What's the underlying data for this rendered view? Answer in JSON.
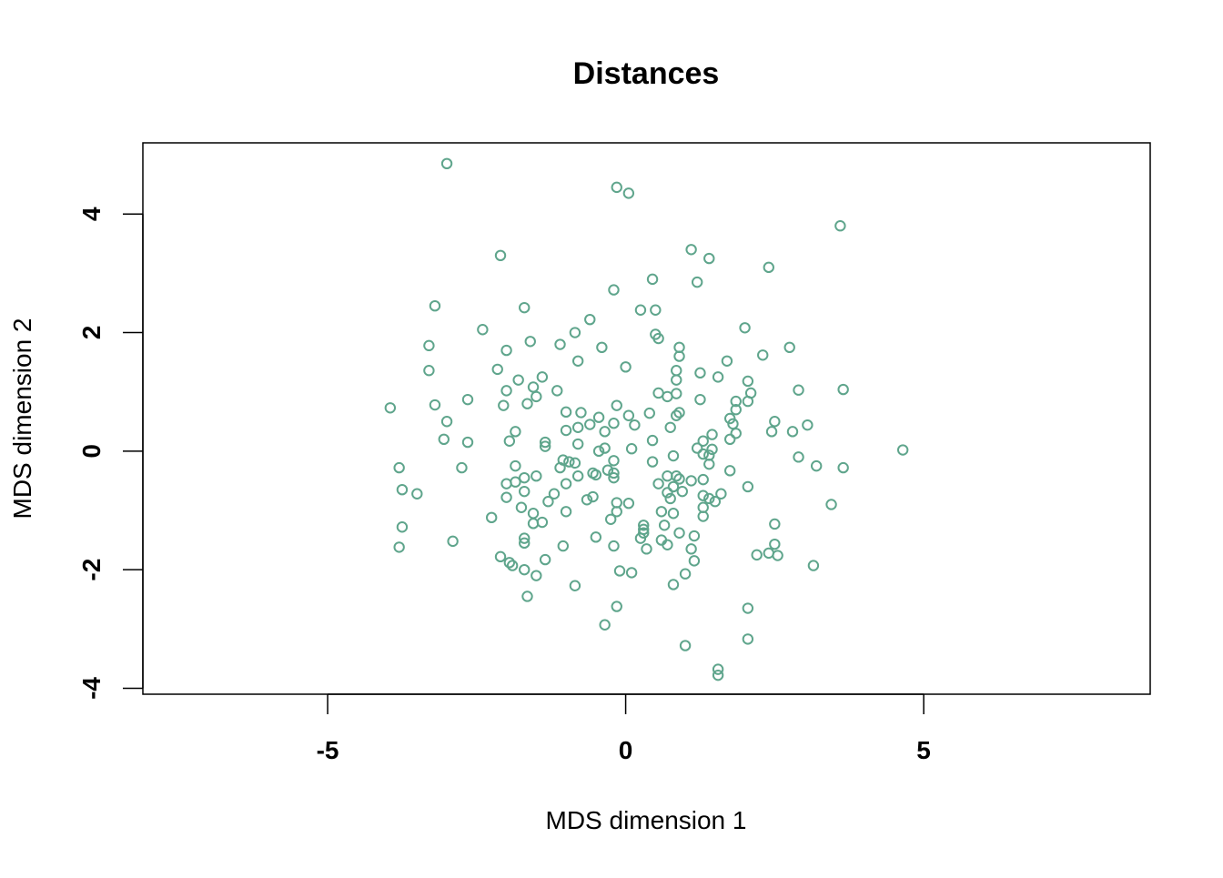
{
  "chart_data": {
    "type": "scatter",
    "title": "Distances",
    "xlabel": "MDS dimension 1",
    "ylabel": "MDS dimension 2",
    "xlim": [
      -8.1,
      8.8
    ],
    "ylim": [
      -4.1,
      5.2
    ],
    "xticks": [
      -5,
      0,
      5
    ],
    "yticks": [
      -4,
      -2,
      0,
      2,
      4
    ],
    "grid": false,
    "point_color": "#5fa58c",
    "points": [
      [
        -3.0,
        4.85
      ],
      [
        -0.15,
        4.45
      ],
      [
        0.05,
        4.35
      ],
      [
        3.6,
        3.8
      ],
      [
        -2.1,
        3.3
      ],
      [
        1.1,
        3.4
      ],
      [
        1.4,
        3.25
      ],
      [
        2.4,
        3.1
      ],
      [
        0.45,
        2.9
      ],
      [
        1.2,
        2.85
      ],
      [
        -0.2,
        2.72
      ],
      [
        -3.2,
        2.45
      ],
      [
        -1.7,
        2.42
      ],
      [
        0.25,
        2.38
      ],
      [
        0.5,
        2.38
      ],
      [
        -0.6,
        2.22
      ],
      [
        -2.4,
        2.05
      ],
      [
        -0.85,
        2.0
      ],
      [
        0.5,
        1.97
      ],
      [
        2.0,
        2.08
      ],
      [
        -1.6,
        1.85
      ],
      [
        -1.1,
        1.8
      ],
      [
        0.55,
        1.9
      ],
      [
        -3.3,
        1.78
      ],
      [
        -2.0,
        1.7
      ],
      [
        -0.4,
        1.75
      ],
      [
        0.9,
        1.75
      ],
      [
        2.75,
        1.75
      ],
      [
        2.3,
        1.62
      ],
      [
        0.9,
        1.6
      ],
      [
        1.7,
        1.52
      ],
      [
        -0.8,
        1.52
      ],
      [
        -2.15,
        1.38
      ],
      [
        -3.3,
        1.36
      ],
      [
        0.0,
        1.42
      ],
      [
        0.85,
        1.36
      ],
      [
        1.25,
        1.32
      ],
      [
        -1.8,
        1.2
      ],
      [
        -1.4,
        1.25
      ],
      [
        0.85,
        1.2
      ],
      [
        1.55,
        1.25
      ],
      [
        2.05,
        1.18
      ],
      [
        -1.55,
        1.08
      ],
      [
        -2.0,
        1.02
      ],
      [
        -1.15,
        1.02
      ],
      [
        0.55,
        0.98
      ],
      [
        2.1,
        0.98
      ],
      [
        3.65,
        1.04
      ],
      [
        -1.5,
        0.92
      ],
      [
        2.9,
        1.03
      ],
      [
        -2.65,
        0.87
      ],
      [
        0.7,
        0.92
      ],
      [
        0.85,
        0.97
      ],
      [
        1.25,
        0.87
      ],
      [
        1.85,
        0.84
      ],
      [
        2.05,
        0.84
      ],
      [
        -3.2,
        0.78
      ],
      [
        -2.05,
        0.77
      ],
      [
        -1.65,
        0.8
      ],
      [
        -0.15,
        0.77
      ],
      [
        -3.95,
        0.73
      ],
      [
        -1.0,
        0.66
      ],
      [
        -0.75,
        0.65
      ],
      [
        0.9,
        0.65
      ],
      [
        0.4,
        0.64
      ],
      [
        0.85,
        0.6
      ],
      [
        1.85,
        0.7
      ],
      [
        1.75,
        0.55
      ],
      [
        0.05,
        0.6
      ],
      [
        -0.45,
        0.57
      ],
      [
        -3.0,
        0.5
      ],
      [
        -0.6,
        0.45
      ],
      [
        -0.2,
        0.47
      ],
      [
        0.15,
        0.44
      ],
      [
        1.8,
        0.46
      ],
      [
        2.5,
        0.5
      ],
      [
        3.05,
        0.44
      ],
      [
        -1.85,
        0.33
      ],
      [
        -1.0,
        0.35
      ],
      [
        -0.8,
        0.4
      ],
      [
        0.75,
        0.4
      ],
      [
        -0.35,
        0.33
      ],
      [
        2.45,
        0.33
      ],
      [
        1.45,
        0.28
      ],
      [
        1.85,
        0.3
      ],
      [
        2.8,
        0.33
      ],
      [
        -3.05,
        0.2
      ],
      [
        -1.95,
        0.17
      ],
      [
        -1.35,
        0.15
      ],
      [
        0.45,
        0.18
      ],
      [
        1.3,
        0.17
      ],
      [
        1.75,
        0.2
      ],
      [
        -2.65,
        0.15
      ],
      [
        -1.35,
        0.08
      ],
      [
        1.2,
        0.05
      ],
      [
        1.45,
        0.03
      ],
      [
        4.65,
        0.02
      ],
      [
        -0.45,
        0.0
      ],
      [
        -0.8,
        0.12
      ],
      [
        -0.35,
        0.05
      ],
      [
        0.1,
        0.04
      ],
      [
        1.3,
        -0.05
      ],
      [
        1.4,
        -0.07
      ],
      [
        0.8,
        -0.08
      ],
      [
        2.9,
        -0.1
      ],
      [
        -1.05,
        -0.15
      ],
      [
        -0.95,
        -0.18
      ],
      [
        -0.2,
        -0.16
      ],
      [
        0.45,
        -0.18
      ],
      [
        -0.85,
        -0.2
      ],
      [
        1.4,
        -0.22
      ],
      [
        3.2,
        -0.25
      ],
      [
        -1.85,
        -0.25
      ],
      [
        -1.1,
        -0.28
      ],
      [
        -0.3,
        -0.32
      ],
      [
        3.65,
        -0.28
      ],
      [
        -3.8,
        -0.28
      ],
      [
        -2.75,
        -0.28
      ],
      [
        -0.55,
        -0.37
      ],
      [
        -0.5,
        -0.4
      ],
      [
        -0.2,
        -0.37
      ],
      [
        -1.5,
        -0.42
      ],
      [
        -1.7,
        -0.45
      ],
      [
        -0.8,
        -0.42
      ],
      [
        0.7,
        -0.42
      ],
      [
        0.85,
        -0.42
      ],
      [
        0.9,
        -0.47
      ],
      [
        1.1,
        -0.5
      ],
      [
        1.3,
        -0.48
      ],
      [
        1.75,
        -0.33
      ],
      [
        -0.2,
        -0.45
      ],
      [
        -1.85,
        -0.52
      ],
      [
        -2.0,
        -0.55
      ],
      [
        -1.0,
        -0.55
      ],
      [
        0.55,
        -0.55
      ],
      [
        0.8,
        -0.6
      ],
      [
        2.05,
        -0.6
      ],
      [
        -3.75,
        -0.65
      ],
      [
        -1.7,
        -0.68
      ],
      [
        -1.2,
        -0.72
      ],
      [
        0.95,
        -0.68
      ],
      [
        0.7,
        -0.7
      ],
      [
        1.3,
        -0.75
      ],
      [
        1.6,
        -0.72
      ],
      [
        -3.5,
        -0.72
      ],
      [
        -0.55,
        -0.77
      ],
      [
        1.4,
        -0.8
      ],
      [
        1.5,
        -0.85
      ],
      [
        0.75,
        -0.8
      ],
      [
        -2.0,
        -0.78
      ],
      [
        -1.3,
        -0.85
      ],
      [
        -0.65,
        -0.82
      ],
      [
        -0.15,
        -0.87
      ],
      [
        0.05,
        -0.88
      ],
      [
        3.45,
        -0.9
      ],
      [
        -1.75,
        -0.95
      ],
      [
        1.3,
        -0.95
      ],
      [
        -1.55,
        -1.05
      ],
      [
        -1.0,
        -1.02
      ],
      [
        -0.15,
        -1.02
      ],
      [
        0.6,
        -1.02
      ],
      [
        0.8,
        -1.05
      ],
      [
        1.3,
        -1.1
      ],
      [
        -2.25,
        -1.12
      ],
      [
        -0.25,
        -1.15
      ],
      [
        -1.55,
        -1.22
      ],
      [
        -1.4,
        -1.2
      ],
      [
        0.3,
        -1.25
      ],
      [
        0.65,
        -1.25
      ],
      [
        2.5,
        -1.23
      ],
      [
        0.3,
        -1.32
      ],
      [
        0.3,
        -1.38
      ],
      [
        -3.75,
        -1.28
      ],
      [
        0.9,
        -1.38
      ],
      [
        1.15,
        -1.43
      ],
      [
        0.25,
        -1.47
      ],
      [
        0.6,
        -1.5
      ],
      [
        -0.5,
        -1.45
      ],
      [
        -1.7,
        -1.47
      ],
      [
        -1.7,
        -1.55
      ],
      [
        -2.9,
        -1.52
      ],
      [
        -1.05,
        -1.6
      ],
      [
        0.7,
        -1.58
      ],
      [
        2.5,
        -1.57
      ],
      [
        -0.2,
        -1.6
      ],
      [
        0.35,
        -1.65
      ],
      [
        1.1,
        -1.65
      ],
      [
        -3.8,
        -1.62
      ],
      [
        2.4,
        -1.72
      ],
      [
        2.2,
        -1.75
      ],
      [
        2.55,
        -1.76
      ],
      [
        -2.1,
        -1.78
      ],
      [
        -1.35,
        -1.83
      ],
      [
        1.15,
        -1.85
      ],
      [
        -1.95,
        -1.88
      ],
      [
        -1.9,
        -1.93
      ],
      [
        3.15,
        -1.93
      ],
      [
        -1.7,
        -2.0
      ],
      [
        -0.1,
        -2.02
      ],
      [
        0.1,
        -2.05
      ],
      [
        -1.5,
        -2.1
      ],
      [
        1.0,
        -2.07
      ],
      [
        0.8,
        -2.25
      ],
      [
        -0.85,
        -2.27
      ],
      [
        -1.65,
        -2.45
      ],
      [
        2.05,
        -2.65
      ],
      [
        -0.15,
        -2.62
      ],
      [
        -0.35,
        -2.93
      ],
      [
        2.05,
        -3.17
      ],
      [
        1.0,
        -3.28
      ],
      [
        1.55,
        -3.68
      ],
      [
        1.55,
        -3.78
      ]
    ]
  }
}
